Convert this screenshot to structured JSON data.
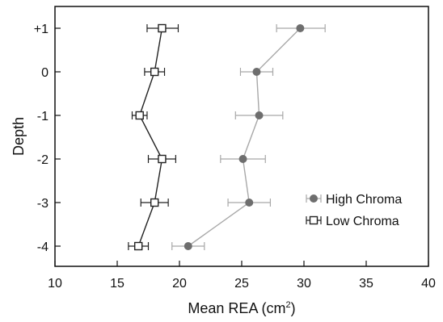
{
  "chart_data": {
    "type": "scatter",
    "xlabel": "Mean REA (cm",
    "xlabel_superscript": "2",
    "xlabel_suffix": ")",
    "ylabel": "Depth",
    "xlim": [
      10,
      40
    ],
    "xticks": [
      "10",
      "15",
      "20",
      "25",
      "30",
      "35",
      "40"
    ],
    "categories": [
      "+1",
      "0",
      "-1",
      "-2",
      "-3",
      "-4"
    ],
    "grid": false,
    "legend_position": "bottom-right",
    "series": [
      {
        "name": "High Chroma",
        "marker": "filled-circle",
        "color": "#6e6e6e",
        "line_color": "#a8a8a8",
        "values": [
          29.7,
          26.2,
          26.4,
          25.1,
          25.6,
          20.7
        ],
        "error_low": [
          27.8,
          24.9,
          24.5,
          23.3,
          23.9,
          19.4
        ],
        "error_high": [
          31.7,
          27.5,
          28.3,
          26.9,
          27.3,
          22.0
        ]
      },
      {
        "name": "Low Chroma",
        "marker": "open-square",
        "color": "#222222",
        "line_color": "#222222",
        "values": [
          18.6,
          18.0,
          16.8,
          18.6,
          18.0,
          16.7
        ],
        "error_low": [
          17.4,
          17.2,
          16.2,
          17.5,
          16.9,
          15.9
        ],
        "error_high": [
          19.9,
          18.8,
          17.4,
          19.7,
          19.1,
          17.5
        ]
      }
    ]
  }
}
